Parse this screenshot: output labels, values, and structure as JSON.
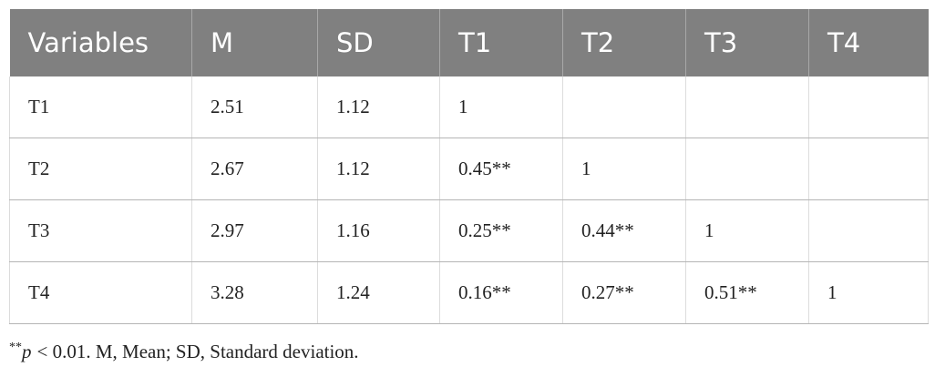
{
  "table": {
    "header": [
      "Variables",
      "M",
      "SD",
      "T1",
      "T2",
      "T3",
      "T4"
    ],
    "rows": [
      [
        "T1",
        "2.51",
        "1.12",
        "1"
      ],
      [
        "T2",
        "2.67",
        "1.12",
        "0.45**",
        "1"
      ],
      [
        "T3",
        "2.97",
        "1.16",
        "0.25**",
        "0.44**",
        "1"
      ],
      [
        "T4",
        "3.28",
        "1.24",
        "0.16**",
        "0.27**",
        "0.51**",
        "1"
      ]
    ]
  },
  "footnote": {
    "stars": "**",
    "p": "p",
    "rest": "< 0.01. M, Mean; SD, Standard deviation."
  }
}
